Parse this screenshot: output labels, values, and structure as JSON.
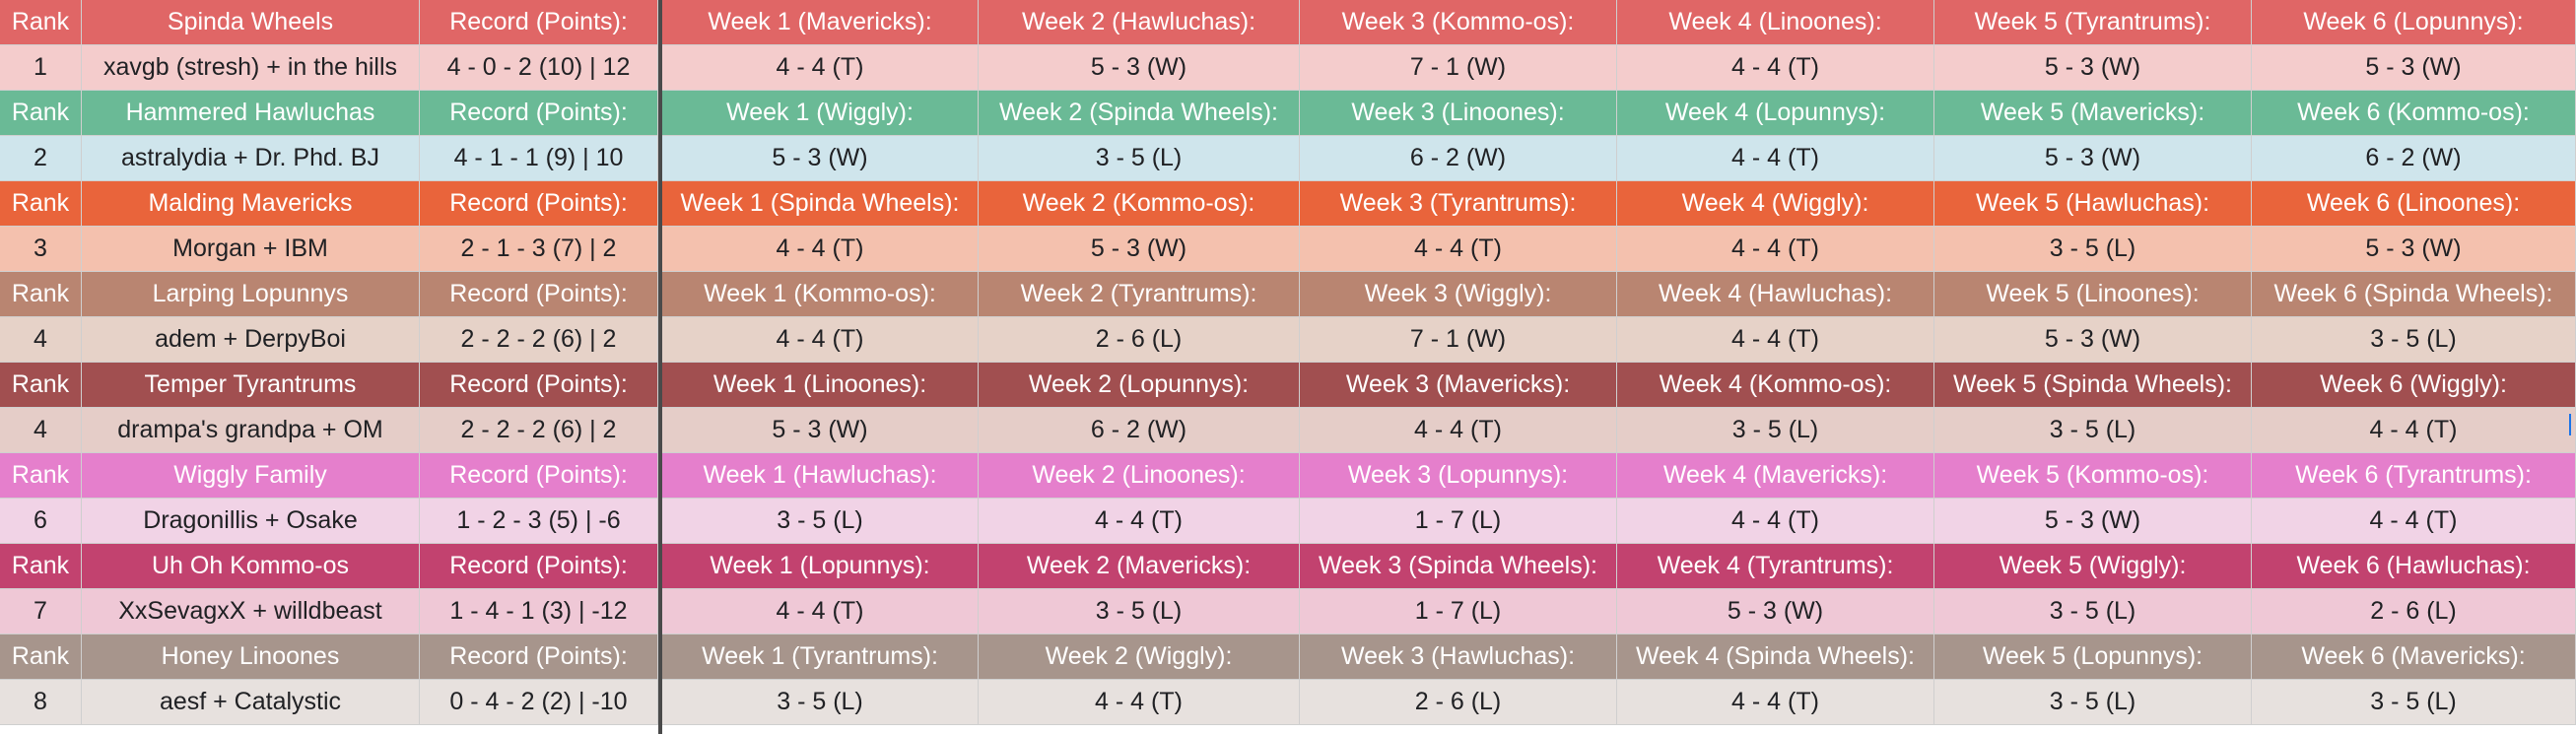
{
  "teams": [
    {
      "header_color": "#e06666",
      "row_color": "#f4cccc",
      "rank_label": "Rank",
      "team_name": "Spinda Wheels",
      "record_label": "Record (Points):",
      "rank": "1",
      "players": "xavgb (stresh) + in the hills",
      "record": "4 - 0 - 2 (10) | 12",
      "week_headers": [
        "Week 1 (Mavericks):",
        "Week 2 (Hawluchas):",
        "Week 3 (Kommo-os):",
        "Week 4 (Linoones):",
        "Week 5 (Tyrantrums):",
        "Week 6 (Lopunnys):"
      ],
      "results": [
        "4 - 4 (T)",
        "5 - 3 (W)",
        "7 - 1 (W)",
        "4 - 4 (T)",
        "5 - 3 (W)",
        "5 - 3 (W)"
      ]
    },
    {
      "header_color": "#6aba96",
      "row_color": "#cfe5ec",
      "rank_label": "Rank",
      "team_name": "Hammered Hawluchas",
      "record_label": "Record (Points):",
      "rank": "2",
      "players": "astralydia + Dr. Phd. BJ",
      "record": "4 - 1 - 1 (9) | 10",
      "week_headers": [
        "Week 1 (Wiggly):",
        "Week 2 (Spinda Wheels):",
        "Week 3 (Linoones):",
        "Week 4 (Lopunnys):",
        "Week 5 (Mavericks):",
        "Week 6 (Kommo-os):"
      ],
      "results": [
        "5 - 3 (W)",
        "3 - 5 (L)",
        "6 - 2 (W)",
        "4 - 4 (T)",
        "5 - 3 (W)",
        "6 - 2 (W)"
      ]
    },
    {
      "header_color": "#e9643b",
      "row_color": "#f4c1ae",
      "rank_label": "Rank",
      "team_name": "Malding Mavericks",
      "record_label": "Record (Points):",
      "rank": "3",
      "players": "Morgan + IBM",
      "record": "2 - 1 - 3 (7) | 2",
      "week_headers": [
        "Week 1 (Spinda Wheels):",
        "Week 2 (Kommo-os):",
        "Week 3 (Tyrantrums):",
        "Week 4 (Wiggly):",
        "Week 5 (Hawluchas):",
        "Week 6 (Linoones):"
      ],
      "results": [
        "4 - 4 (T)",
        "5 - 3 (W)",
        "4 - 4 (T)",
        "4 - 4 (T)",
        "3 - 5 (L)",
        "5 - 3 (W)"
      ]
    },
    {
      "header_color": "#b98571",
      "row_color": "#e6d2c8",
      "rank_label": "Rank",
      "team_name": "Larping Lopunnys",
      "record_label": "Record (Points):",
      "rank": "4",
      "players": "adem + DerpyBoi",
      "record": "2 - 2 - 2 (6) | 2",
      "week_headers": [
        "Week 1 (Kommo-os):",
        "Week 2 (Tyrantrums):",
        "Week 3 (Wiggly):",
        "Week 4 (Hawluchas):",
        "Week 5 (Linoones):",
        "Week 6 (Spinda Wheels):"
      ],
      "results": [
        "4 - 4 (T)",
        "2 - 6 (L)",
        "7 - 1 (W)",
        "4 - 4 (T)",
        "5 - 3 (W)",
        "3 - 5 (L)"
      ]
    },
    {
      "header_color": "#a14f50",
      "row_color": "#e5cdc8",
      "rank_label": "Rank",
      "team_name": "Temper Tyrantrums",
      "record_label": "Record (Points):",
      "rank": "4",
      "players": "drampa's grandpa + OM",
      "record": "2 - 2 - 2 (6) | 2",
      "week_headers": [
        "Week 1 (Linoones):",
        "Week 2 (Lopunnys):",
        "Week 3 (Mavericks):",
        "Week 4 (Kommo-os):",
        "Week 5 (Spinda Wheels):",
        "Week 6 (Wiggly):"
      ],
      "results": [
        "5 - 3 (W)",
        "6 - 2 (W)",
        "4 - 4 (T)",
        "3 - 5 (L)",
        "3 - 5 (L)",
        "4 - 4 (T)"
      ]
    },
    {
      "header_color": "#e57fcc",
      "row_color": "#f1d3e6",
      "rank_label": "Rank",
      "team_name": "Wiggly Family",
      "record_label": "Record (Points):",
      "rank": "6",
      "players": "Dragonillis + Osake",
      "record": "1 - 2 - 3 (5) | -6",
      "week_headers": [
        "Week 1 (Hawluchas):",
        "Week 2 (Linoones):",
        "Week 3 (Lopunnys):",
        "Week 4 (Mavericks):",
        "Week 5 (Kommo-os):",
        "Week 6 (Tyrantrums):"
      ],
      "results": [
        "3 - 5 (L)",
        "4 - 4 (T)",
        "1 - 7 (L)",
        "4 - 4 (T)",
        "5 - 3 (W)",
        "4 - 4 (T)"
      ]
    },
    {
      "header_color": "#c2426f",
      "row_color": "#efc8d6",
      "rank_label": "Rank",
      "team_name": "Uh Oh Kommo-os",
      "record_label": "Record (Points):",
      "rank": "7",
      "players": "XxSevagxX + willdbeast",
      "record": "1 - 4 - 1 (3) | -12",
      "week_headers": [
        "Week 1 (Lopunnys):",
        "Week 2 (Mavericks):",
        "Week 3 (Spinda Wheels):",
        "Week 4 (Tyrantrums):",
        "Week 5 (Wiggly):",
        "Week 6 (Hawluchas):"
      ],
      "results": [
        "4 - 4 (T)",
        "3 - 5 (L)",
        "1 - 7 (L)",
        "5 - 3 (W)",
        "3 - 5 (L)",
        "2 - 6 (L)"
      ]
    },
    {
      "header_color": "#a7958c",
      "row_color": "#e7e1de",
      "rank_label": "Rank",
      "team_name": "Honey Linoones",
      "record_label": "Record (Points):",
      "rank": "8",
      "players": "aesf + Catalystic",
      "record": "0 - 4 - 2 (2) | -10",
      "week_headers": [
        "Week 1 (Tyrantrums):",
        "Week 2 (Wiggly):",
        "Week 3 (Hawluchas):",
        "Week 4 (Spinda Wheels):",
        "Week 5 (Lopunnys):",
        "Week 6 (Mavericks):"
      ],
      "results": [
        "3 - 5 (L)",
        "4 - 4 (T)",
        "2 - 6 (L)",
        "4 - 4 (T)",
        "3 - 5 (L)",
        "3 - 5 (L)"
      ]
    }
  ]
}
